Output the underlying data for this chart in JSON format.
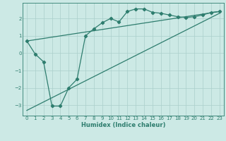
{
  "xlabel": "Humidex (Indice chaleur)",
  "background_color": "#cce9e5",
  "grid_color": "#aacfcb",
  "line_color": "#2e7d6e",
  "xlim": [
    -0.5,
    23.5
  ],
  "ylim": [
    -3.6,
    2.9
  ],
  "yticks": [
    -3,
    -2,
    -1,
    0,
    1,
    2
  ],
  "xticks": [
    0,
    1,
    2,
    3,
    4,
    5,
    6,
    7,
    8,
    9,
    10,
    11,
    12,
    13,
    14,
    15,
    16,
    17,
    18,
    19,
    20,
    21,
    22,
    23
  ],
  "curve_x": [
    0,
    1,
    2,
    3,
    4,
    5,
    6,
    7,
    8,
    9,
    10,
    11,
    12,
    13,
    14,
    15,
    16,
    17,
    18,
    19,
    20,
    21,
    22,
    23
  ],
  "curve_y": [
    0.7,
    -0.05,
    -0.5,
    -3.05,
    -3.05,
    -2.0,
    -1.5,
    1.0,
    1.4,
    1.75,
    2.0,
    1.8,
    2.4,
    2.55,
    2.55,
    2.35,
    2.3,
    2.2,
    2.1,
    2.05,
    2.1,
    2.2,
    2.35,
    2.4
  ],
  "lower_line_x": [
    0,
    23
  ],
  "lower_line_y": [
    -3.3,
    2.3
  ],
  "upper_line_x": [
    0,
    23
  ],
  "upper_line_y": [
    0.7,
    2.4
  ]
}
